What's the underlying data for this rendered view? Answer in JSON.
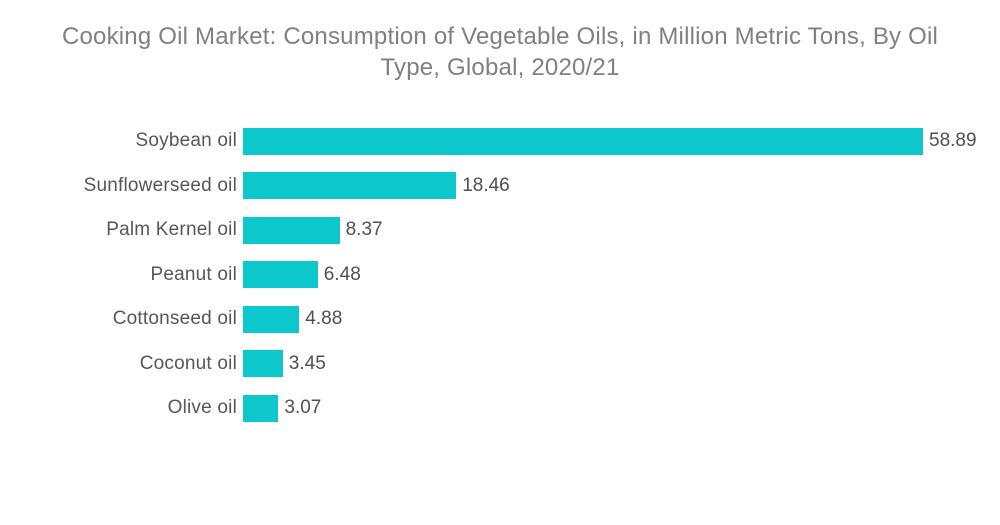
{
  "title": {
    "lines": [
      "Cooking Oil Market: Consumption of Vegetable Oils, in Million Metric Tons, By Oil",
      "Type, Global, 2020/21"
    ]
  },
  "chart_data": {
    "type": "bar",
    "orientation": "horizontal",
    "title": "Cooking Oil Market: Consumption of Vegetable Oils, in Million Metric Tons, By Oil Type, Global, 2020/21",
    "categories": [
      "Soybean oil",
      "Sunflowerseed oil",
      "Palm Kernel oil",
      "Peanut oil",
      "Cottonseed oil",
      "Coconut oil",
      "Olive oil"
    ],
    "values": [
      58.89,
      18.46,
      8.37,
      6.48,
      4.88,
      3.45,
      3.07
    ],
    "value_labels": [
      "58.89",
      "18.46",
      "8.37",
      "6.48",
      "4.88",
      "3.45",
      "3.07"
    ],
    "xlabel": "",
    "ylabel": "",
    "xlim": [
      0,
      58.89
    ],
    "grid": false,
    "legend": false,
    "value_labels_position": "end-of-bar",
    "bar_color": "#0cc8cd",
    "category_label_color": "#56575a",
    "value_label_color": "#4f5052",
    "title_color": "#7e8083",
    "background_color": "#ffffff"
  }
}
